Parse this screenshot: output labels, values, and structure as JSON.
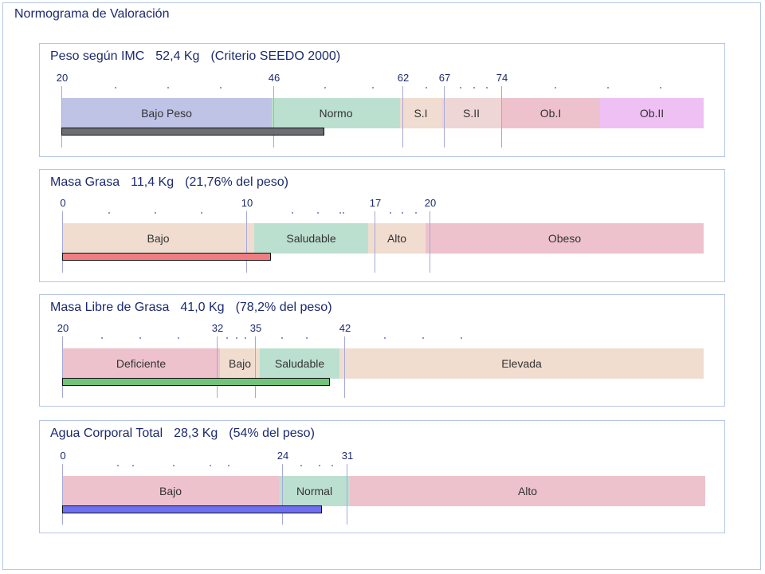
{
  "title": "Normograma de Valoración",
  "panels": [
    {
      "name": "Peso según IMC",
      "value": "52,4 Kg",
      "note": "(Criterio SEEDO 2000)",
      "axis_ticks": [
        "20",
        "46",
        "62",
        "67",
        "74"
      ],
      "segments": [
        {
          "label": "Bajo Peso",
          "color": "#bfc3e6"
        },
        {
          "label": "Normo",
          "color": "#bce0d0"
        },
        {
          "label": "S.I",
          "color": "#f0dcd0"
        },
        {
          "label": "S.II",
          "color": "#eed6d6"
        },
        {
          "label": "Ob.I",
          "color": "#edc2cc"
        },
        {
          "label": "Ob.II",
          "color": "#eec0f4"
        }
      ],
      "bar_color": "#6d6e73",
      "bar_fraction_of_scale": 0.41
    },
    {
      "name": "Masa Grasa",
      "value": "11,4 Kg",
      "note": "(21,76% del peso)",
      "axis_ticks": [
        "0",
        "10",
        "17",
        "20"
      ],
      "segments": [
        {
          "label": "Bajo",
          "color": "#f0ddd0"
        },
        {
          "label": "Saludable",
          "color": "#bce0d0"
        },
        {
          "label": "Alto",
          "color": "#f0ddd0"
        },
        {
          "label": "Obeso",
          "color": "#edc2cc"
        }
      ],
      "bar_color": "#f07d82",
      "bar_fraction_of_scale": 0.326
    },
    {
      "name": "Masa Libre de Grasa",
      "value": "41,0 Kg",
      "note": "(78,2% del peso)",
      "axis_ticks": [
        "20",
        "32",
        "35",
        "42"
      ],
      "segments": [
        {
          "label": "Deficiente",
          "color": "#edc2cc"
        },
        {
          "label": "Bajo",
          "color": "#f0ddd0"
        },
        {
          "label": "Saludable",
          "color": "#bce0d0"
        },
        {
          "label": "Elevada",
          "color": "#f0ddd0"
        }
      ],
      "bar_color": "#73c47a",
      "bar_fraction_of_scale": 0.418
    },
    {
      "name": "Agua Corporal Total",
      "value": "28,3 Kg",
      "note": "(54% del peso)",
      "axis_ticks": [
        "0",
        "24",
        "31"
      ],
      "segments": [
        {
          "label": "Bajo",
          "color": "#edc2cc"
        },
        {
          "label": "Normal",
          "color": "#bce0d0"
        },
        {
          "label": "Alto",
          "color": "#edc2cc"
        }
      ],
      "bar_color": "#6f6ff2",
      "bar_fraction_of_scale": 0.404
    }
  ]
}
